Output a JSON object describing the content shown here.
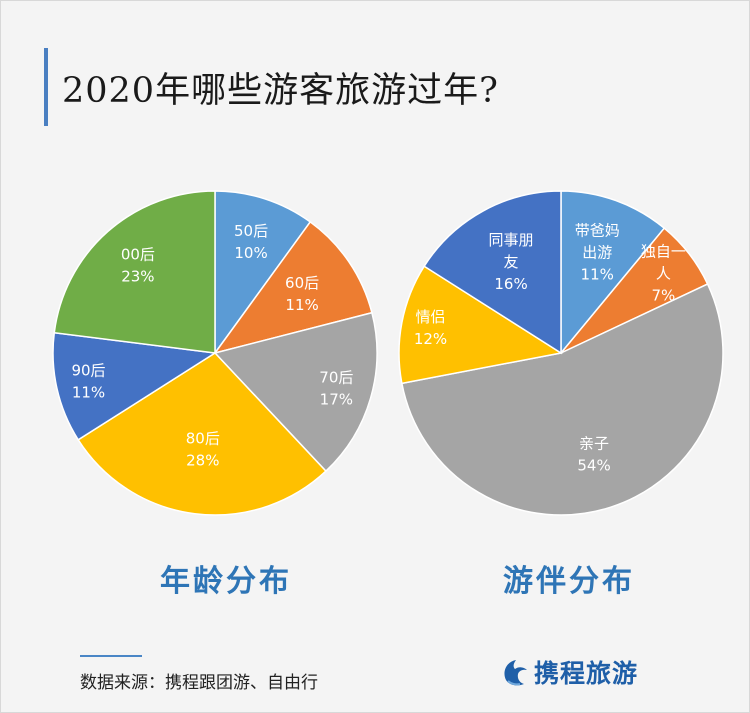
{
  "title": "2020年哪些游客旅游过年?",
  "chart_data": [
    {
      "type": "pie",
      "title": "年龄分布",
      "slices": [
        {
          "lines": [
            "50后",
            "10%"
          ],
          "value": 10,
          "color": "#5b9bd5",
          "text_color": "#ffffff"
        },
        {
          "lines": [
            "60后",
            "11%"
          ],
          "value": 11,
          "color": "#ed7d31",
          "text_color": "#ffffff"
        },
        {
          "lines": [
            "70后",
            "17%"
          ],
          "value": 17,
          "color": "#a5a5a5",
          "text_color": "#ffffff"
        },
        {
          "lines": [
            "80后",
            "28%"
          ],
          "value": 28,
          "color": "#ffc000",
          "text_color": "#ffffff"
        },
        {
          "lines": [
            "90后",
            "11%"
          ],
          "value": 11,
          "color": "#4472c4",
          "text_color": "#ffffff"
        },
        {
          "lines": [
            "00后",
            "23%"
          ],
          "value": 23,
          "color": "#70ad47",
          "text_color": "#ffffff"
        }
      ]
    },
    {
      "type": "pie",
      "title": "游伴分布",
      "slices": [
        {
          "lines": [
            "带爸妈",
            "出游",
            "11%"
          ],
          "value": 11,
          "color": "#5b9bd5",
          "text_color": "#ffffff"
        },
        {
          "lines": [
            "独自一",
            "人",
            "7%"
          ],
          "value": 7,
          "color": "#ed7d31",
          "text_color": "#ffffff"
        },
        {
          "lines": [
            "亲子",
            "54%"
          ],
          "value": 54,
          "color": "#a5a5a5",
          "text_color": "#ffffff"
        },
        {
          "lines": [
            "情侣",
            "12%"
          ],
          "value": 12,
          "color": "#ffc000",
          "text_color": "#ffffff"
        },
        {
          "lines": [
            "同事朋",
            "友",
            "16%"
          ],
          "value": 16,
          "color": "#4472c4",
          "text_color": "#ffffff"
        }
      ]
    }
  ],
  "footer": {
    "source": "数据来源：携程跟团游、自由行",
    "logo_text": "携程旅游",
    "logo_icon": "dolphin-logo-icon"
  }
}
